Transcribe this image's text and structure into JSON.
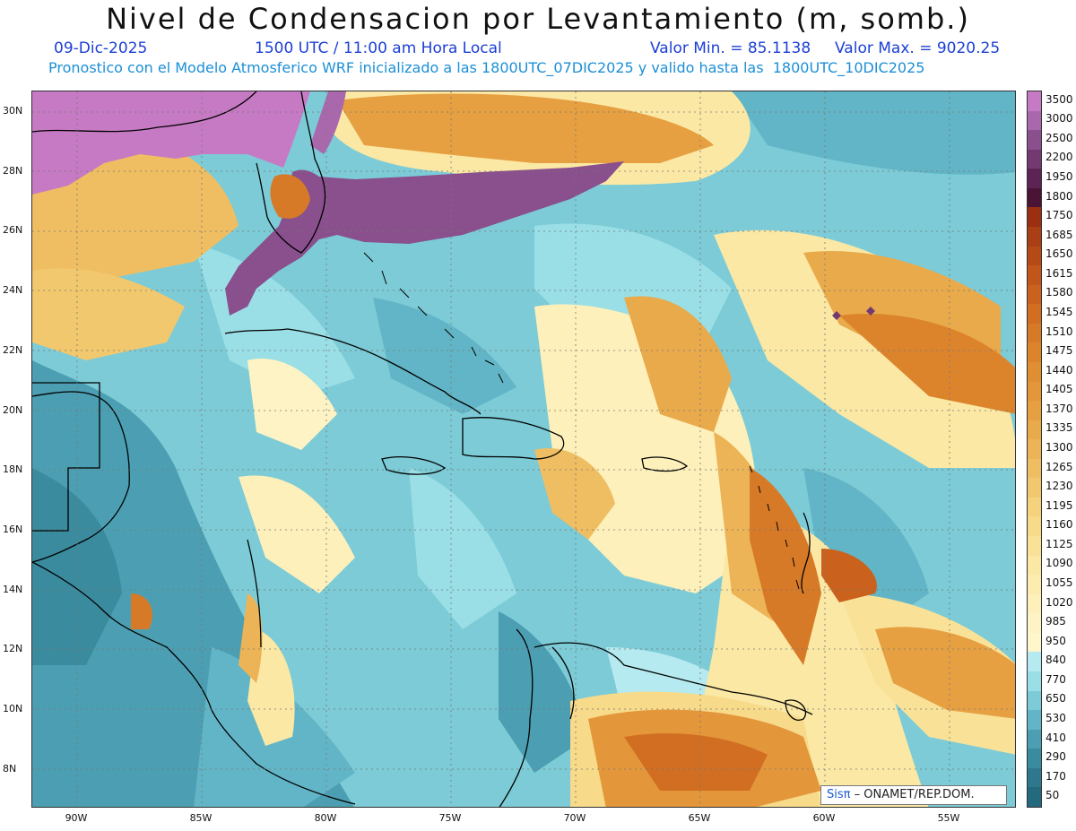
{
  "header": {
    "title": "Nivel de Condensacion por Levantamiento (m, somb.)",
    "date": "09-Dic-2025",
    "time": "1500 UTC / 11:00 am Hora Local",
    "min_label": "Valor Min. = 85.1138",
    "max_label": "Valor Max. = 9020.25",
    "description": "Pronostico con el Modelo Atmosferico WRF inicializado a las 1800UTC_07DIC2025 y valido hasta las  1800UTC_10DIC2025"
  },
  "map": {
    "lat_labels": [
      "30N",
      "28N",
      "26N",
      "24N",
      "22N",
      "20N",
      "18N",
      "16N",
      "14N",
      "12N",
      "10N",
      "8N"
    ],
    "lon_labels": [
      "90W",
      "85W",
      "80W",
      "75W",
      "70W",
      "65W",
      "60W",
      "55W"
    ],
    "credit_sis": "Sisπ",
    "credit_text": " – ONAMET/REP.DOM."
  },
  "colorbar": {
    "levels": [
      "3500",
      "3000",
      "2500",
      "2200",
      "1950",
      "1800",
      "1750",
      "1685",
      "1650",
      "1615",
      "1580",
      "1545",
      "1510",
      "1475",
      "1440",
      "1405",
      "1370",
      "1335",
      "1300",
      "1265",
      "1230",
      "1195",
      "1160",
      "1125",
      "1090",
      "1055",
      "1020",
      "985",
      "950",
      "840",
      "770",
      "650",
      "530",
      "410",
      "290",
      "170",
      "50"
    ],
    "colors": [
      "#c77ac4",
      "#a968ac",
      "#8a4f8d",
      "#733a72",
      "#5c2454",
      "#4a1436",
      "#9a2f12",
      "#aa3e14",
      "#b64a16",
      "#c2561a",
      "#ca621e",
      "#d16e22",
      "#d77a28",
      "#dc842c",
      "#e08e32",
      "#e3963a",
      "#e6a042",
      "#e9aa4c",
      "#ecb456",
      "#efbe62",
      "#f2c86e",
      "#f5d27c",
      "#f7da8a",
      "#f9e298",
      "#fbe8a4",
      "#fcecb0",
      "#fdf0ba",
      "#fef3c4",
      "#fff6cc",
      "#b4eaf0",
      "#9adfe6",
      "#7ccbd6",
      "#62b5c6",
      "#4c9fb2",
      "#3b8b9e",
      "#2d788c",
      "#246a7e"
    ]
  }
}
